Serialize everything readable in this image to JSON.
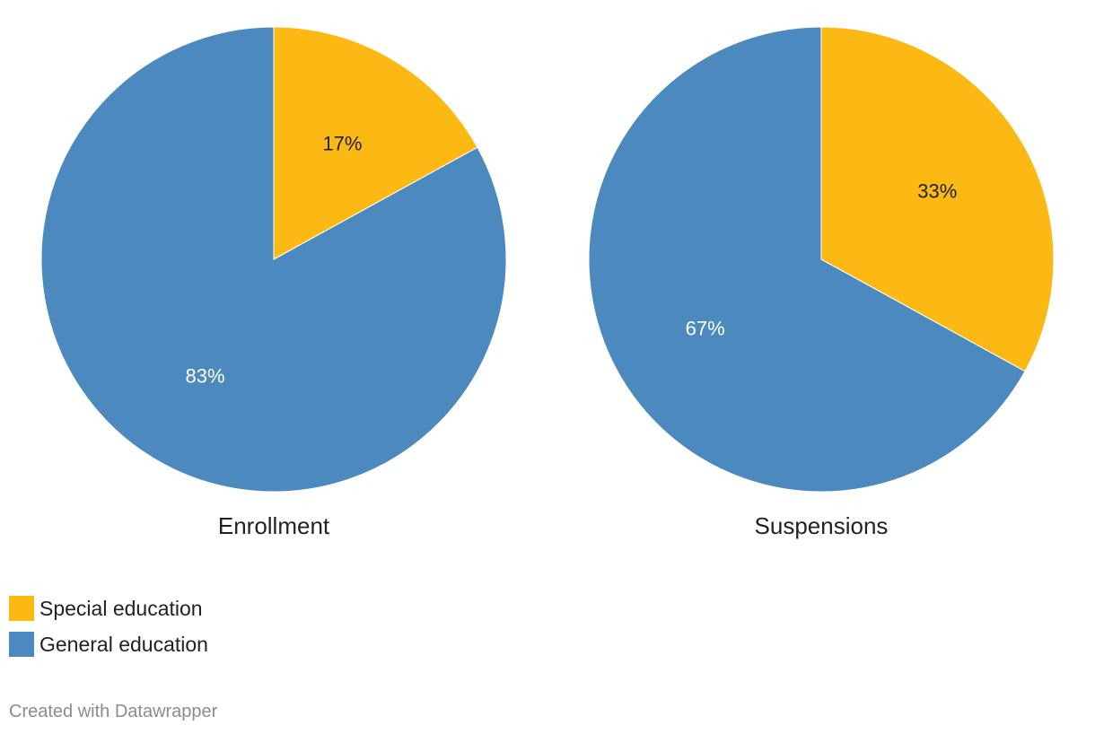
{
  "chart_data": [
    {
      "type": "pie",
      "title": "Enrollment",
      "slices": [
        {
          "name": "Special education",
          "value": 17,
          "label": "17%",
          "color": "#fcb914",
          "label_color": "#222222"
        },
        {
          "name": "General education",
          "value": 83,
          "label": "83%",
          "color": "#4c89bf",
          "label_color": "#ffffff"
        }
      ]
    },
    {
      "type": "pie",
      "title": "Suspensions",
      "slices": [
        {
          "name": "Special education",
          "value": 33,
          "label": "33%",
          "color": "#fcb914",
          "label_color": "#222222"
        },
        {
          "name": "General education",
          "value": 67,
          "label": "67%",
          "color": "#4c89bf",
          "label_color": "#ffffff"
        }
      ]
    }
  ],
  "legend": {
    "items": [
      {
        "label": "Special education",
        "color": "#fcb914"
      },
      {
        "label": "General education",
        "color": "#4c89bf"
      }
    ]
  },
  "footer": {
    "credit": "Created with Datawrapper"
  }
}
